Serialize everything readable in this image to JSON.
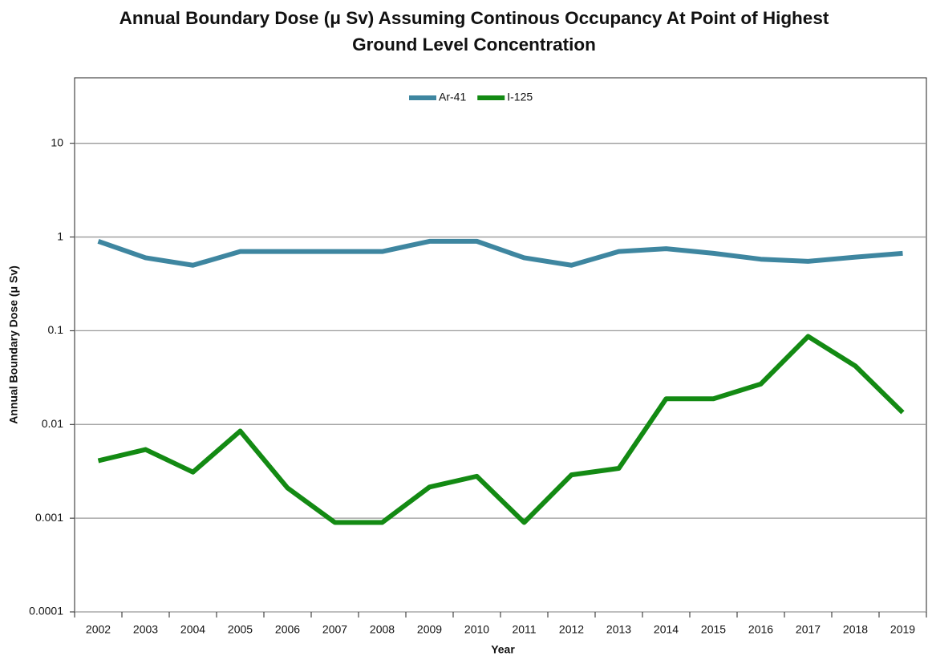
{
  "chart_data": {
    "type": "line",
    "title": "Annual Boundary Dose (μ Sv) Assuming Continous Occupancy At Point of Highest Ground Level Concentration",
    "xlabel": "Year",
    "ylabel": "Annual Boundary Dose (μ Sv)",
    "categories": [
      "2002",
      "2003",
      "2004",
      "2005",
      "2006",
      "2007",
      "2008",
      "2009",
      "2010",
      "2011",
      "2012",
      "2013",
      "2014",
      "2015",
      "2016",
      "2017",
      "2018",
      "2019"
    ],
    "series": [
      {
        "name": "Ar-41",
        "color": "#3e86a0",
        "values": [
          0.9,
          0.6,
          0.5,
          0.7,
          0.7,
          0.7,
          0.7,
          0.9,
          0.9,
          0.6,
          0.5,
          0.7,
          0.75,
          0.67,
          0.58,
          0.55,
          0.61,
          0.67
        ]
      },
      {
        "name": "I-125",
        "color": "#138a13",
        "values": [
          0.0041,
          0.0054,
          0.0031,
          0.0085,
          0.0021,
          0.0009,
          0.0009,
          0.00215,
          0.0028,
          0.0009,
          0.0029,
          0.0034,
          0.0188,
          0.0188,
          0.027,
          0.087,
          0.042,
          0.0134
        ]
      }
    ],
    "ylim": [
      0.0001,
      50
    ],
    "yticks": [
      0.0001,
      0.001,
      0.01,
      0.1,
      1,
      10
    ],
    "log_y": true,
    "grid": true,
    "legend": "top"
  }
}
